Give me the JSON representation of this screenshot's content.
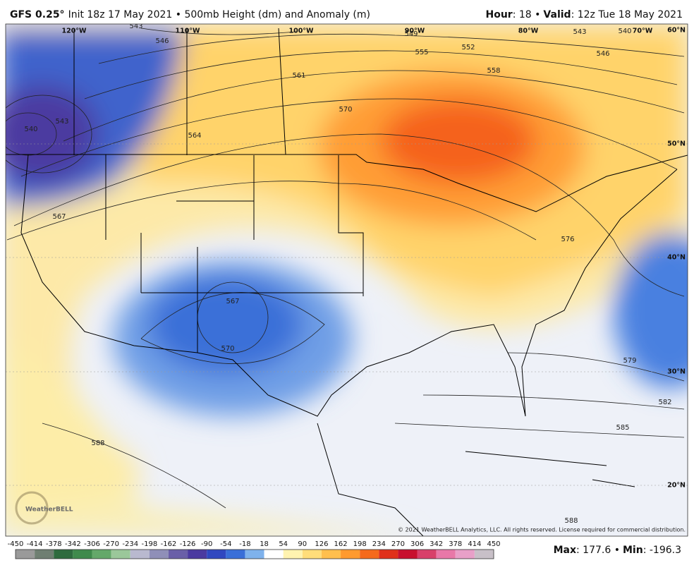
{
  "header": {
    "model": "GFS 0.25°",
    "title": "Init 18z 17 May 2021 • 500mb Height (dm) and Anomaly (m)",
    "hour_label": "Hour",
    "hour_value": ": 18 •",
    "valid_label": "Valid",
    "valid_value": ": 12z Tue 18 May 2021"
  },
  "map": {
    "lon_labels": [
      "120°W",
      "110°W",
      "100°W",
      "90°W",
      "80°W",
      "70°W"
    ],
    "lat_labels": [
      "60°N",
      "50°N",
      "40°N",
      "30°N",
      "20°N"
    ],
    "contour_labels": [
      "543",
      "546",
      "549",
      "555",
      "552",
      "558",
      "561",
      "543",
      "540",
      "546",
      "543",
      "540",
      "570",
      "564",
      "567",
      "576",
      "567",
      "570",
      "579",
      "582",
      "585",
      "588",
      "588"
    ],
    "logo": "WeatherBELL",
    "copyright": "© 2021 WeatherBELL Analytics, LLC. All rights reserved. License required for commercial distribution."
  },
  "colorbar": {
    "ticks": [
      -450,
      -414,
      -378,
      -342,
      -306,
      -270,
      -234,
      -198,
      -162,
      -126,
      -90,
      -54,
      -18,
      18,
      54,
      90,
      126,
      162,
      198,
      234,
      270,
      306,
      342,
      378,
      414,
      450
    ],
    "colors": [
      "#9a9a9a",
      "#6f7f72",
      "#2e6b3e",
      "#3f8a4c",
      "#64a86a",
      "#9bc79a",
      "#b9b9cf",
      "#8f8fb8",
      "#6a5fa8",
      "#4b3aa0",
      "#3048c0",
      "#3a6fd8",
      "#7fb2ec",
      "#ffffff",
      "#fff3b0",
      "#ffdd7a",
      "#ffbf4d",
      "#ff9a2e",
      "#f56a1c",
      "#e0301a",
      "#c8102e",
      "#d8406a",
      "#e878a8",
      "#e8a0c8",
      "#c8c0c8"
    ]
  },
  "footer": {
    "max_label": "Max",
    "max_value": ": 177.6 •",
    "min_label": "Min",
    "min_value": ": -196.3"
  }
}
